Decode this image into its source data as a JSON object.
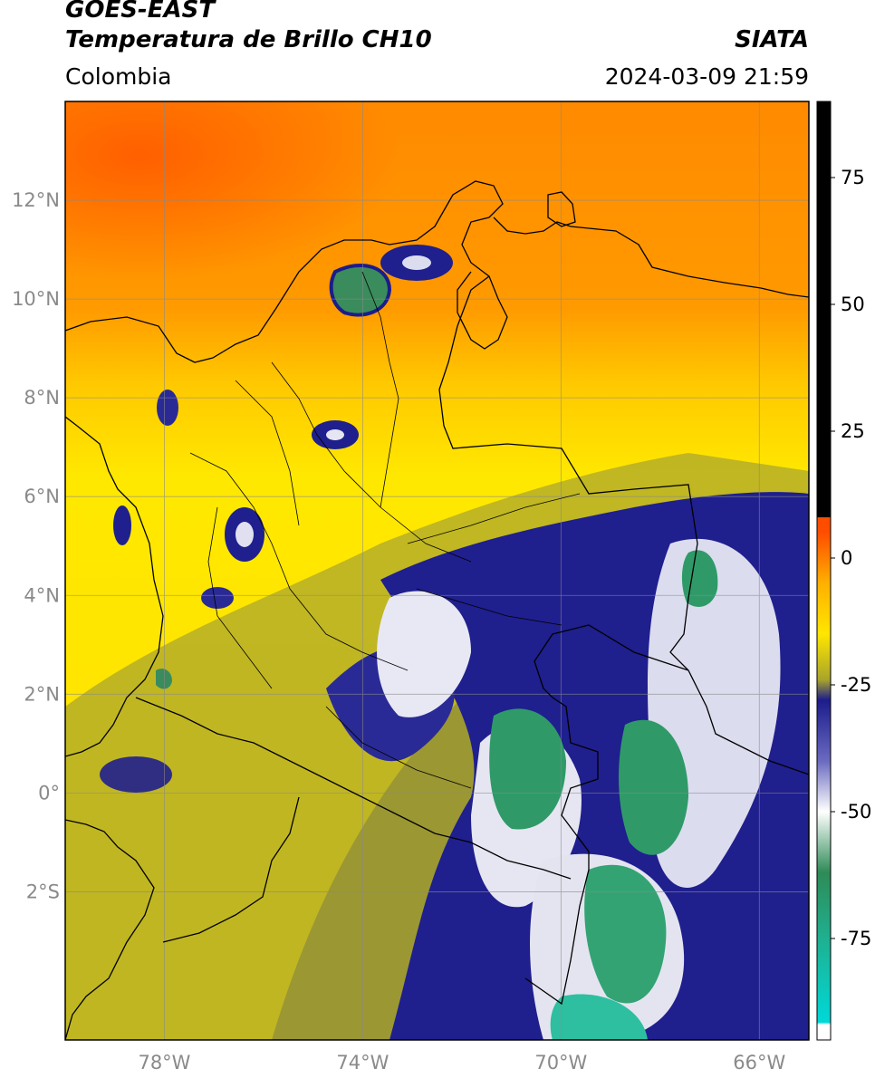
{
  "header": {
    "satellite": "GOES-EAST",
    "product": "Temperatura de Brillo CH10",
    "region": "Colombia",
    "organization": "SIATA",
    "timestamp": "2024-03-09 21:59"
  },
  "map": {
    "lon_range": [
      -80,
      -65
    ],
    "lat_range": [
      -5,
      14
    ],
    "lat_ticks": [
      {
        "value": 12,
        "label": "12°N"
      },
      {
        "value": 10,
        "label": "10°N"
      },
      {
        "value": 8,
        "label": "8°N"
      },
      {
        "value": 6,
        "label": "6°N"
      },
      {
        "value": 4,
        "label": "4°N"
      },
      {
        "value": 2,
        "label": "2°N"
      },
      {
        "value": 0,
        "label": "0°"
      },
      {
        "value": -2,
        "label": "2°S"
      }
    ],
    "lon_ticks": [
      {
        "value": -78,
        "label": "78°W"
      },
      {
        "value": -74,
        "label": "74°W"
      },
      {
        "value": -70,
        "label": "70°W"
      },
      {
        "value": -66,
        "label": "66°W"
      }
    ],
    "gridlines": true
  },
  "colorbar": {
    "range": [
      -95,
      90
    ],
    "ticks": [
      {
        "value": 75,
        "label": "75"
      },
      {
        "value": 50,
        "label": "50"
      },
      {
        "value": 25,
        "label": "25"
      },
      {
        "value": 0,
        "label": "0"
      },
      {
        "value": -25,
        "label": "-25"
      },
      {
        "value": -50,
        "label": "-50"
      },
      {
        "value": -75,
        "label": "-75"
      }
    ],
    "colors": {
      "warm": "#ff4d00",
      "orange": "#ff9400",
      "yellow": "#ffe600",
      "olive": "#a8a42b",
      "navy": "#1c1c8c",
      "white": "#ffffff",
      "green": "#2e8b57",
      "cyan": "#00d8d8",
      "black": "#000000"
    }
  }
}
